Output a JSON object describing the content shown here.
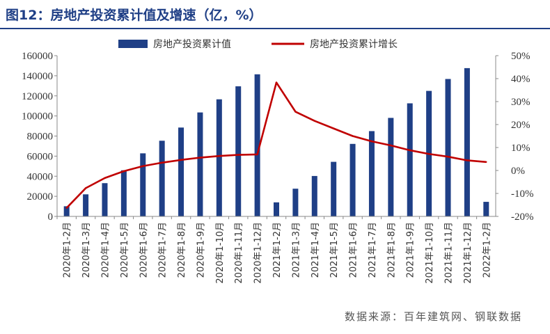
{
  "header": {
    "title": "图12：房地产投资累计值及增速（亿，%）"
  },
  "footer": {
    "source": "数据来源：百年建筑网、钢联数据"
  },
  "colors": {
    "bar": "#1f3f86",
    "line": "#c00000",
    "title": "#1f3f86"
  },
  "chart_data": {
    "type": "bar",
    "categories": [
      "2020年1-2月",
      "2020年1-3月",
      "2020年1-4月",
      "2020年1-5月",
      "2020年1-6月",
      "2020年1-7月",
      "2020年1-8月",
      "2020年1-9月",
      "2020年1-10月",
      "2020年1-11月",
      "2020年1-12月",
      "2021年1-2月",
      "2021年1-3月",
      "2021年1-4月",
      "2021年1-5月",
      "2021年1-6月",
      "2021年1-7月",
      "2021年1-8月",
      "2021年1-9月",
      "2021年1-10月",
      "2021年1-11月",
      "2021年1-12月",
      "2022年1-2月"
    ],
    "series": [
      {
        "name": "房地产投资累计值",
        "type": "bar",
        "axis": "left",
        "values": [
          10115,
          21963,
          33103,
          45920,
          62780,
          75325,
          88454,
          103484,
          116556,
          129492,
          141443,
          13986,
          27576,
          40240,
          54318,
          72179,
          84895,
          98060,
          112559,
          124934,
          136790,
          147602,
          14499
        ]
      },
      {
        "name": "房地产投资累计增长",
        "type": "line",
        "axis": "right",
        "values": [
          -16.3,
          -7.7,
          -3.3,
          -0.3,
          1.9,
          3.4,
          4.6,
          5.6,
          6.3,
          6.8,
          7.0,
          38.3,
          25.6,
          21.6,
          18.3,
          15.0,
          12.7,
          10.9,
          8.8,
          7.2,
          6.0,
          4.4,
          3.7
        ]
      }
    ],
    "y_left": {
      "min": 0,
      "max": 160000,
      "ticks": [
        "0",
        "20000",
        "40000",
        "60000",
        "80000",
        "100000",
        "120000",
        "140000",
        "160000"
      ]
    },
    "y_right": {
      "min": -20,
      "max": 50,
      "ticks": [
        "-20%",
        "-10%",
        "0%",
        "10%",
        "20%",
        "30%",
        "40%",
        "50%"
      ]
    },
    "legend": {
      "placement": "top-center"
    },
    "grid": false
  }
}
